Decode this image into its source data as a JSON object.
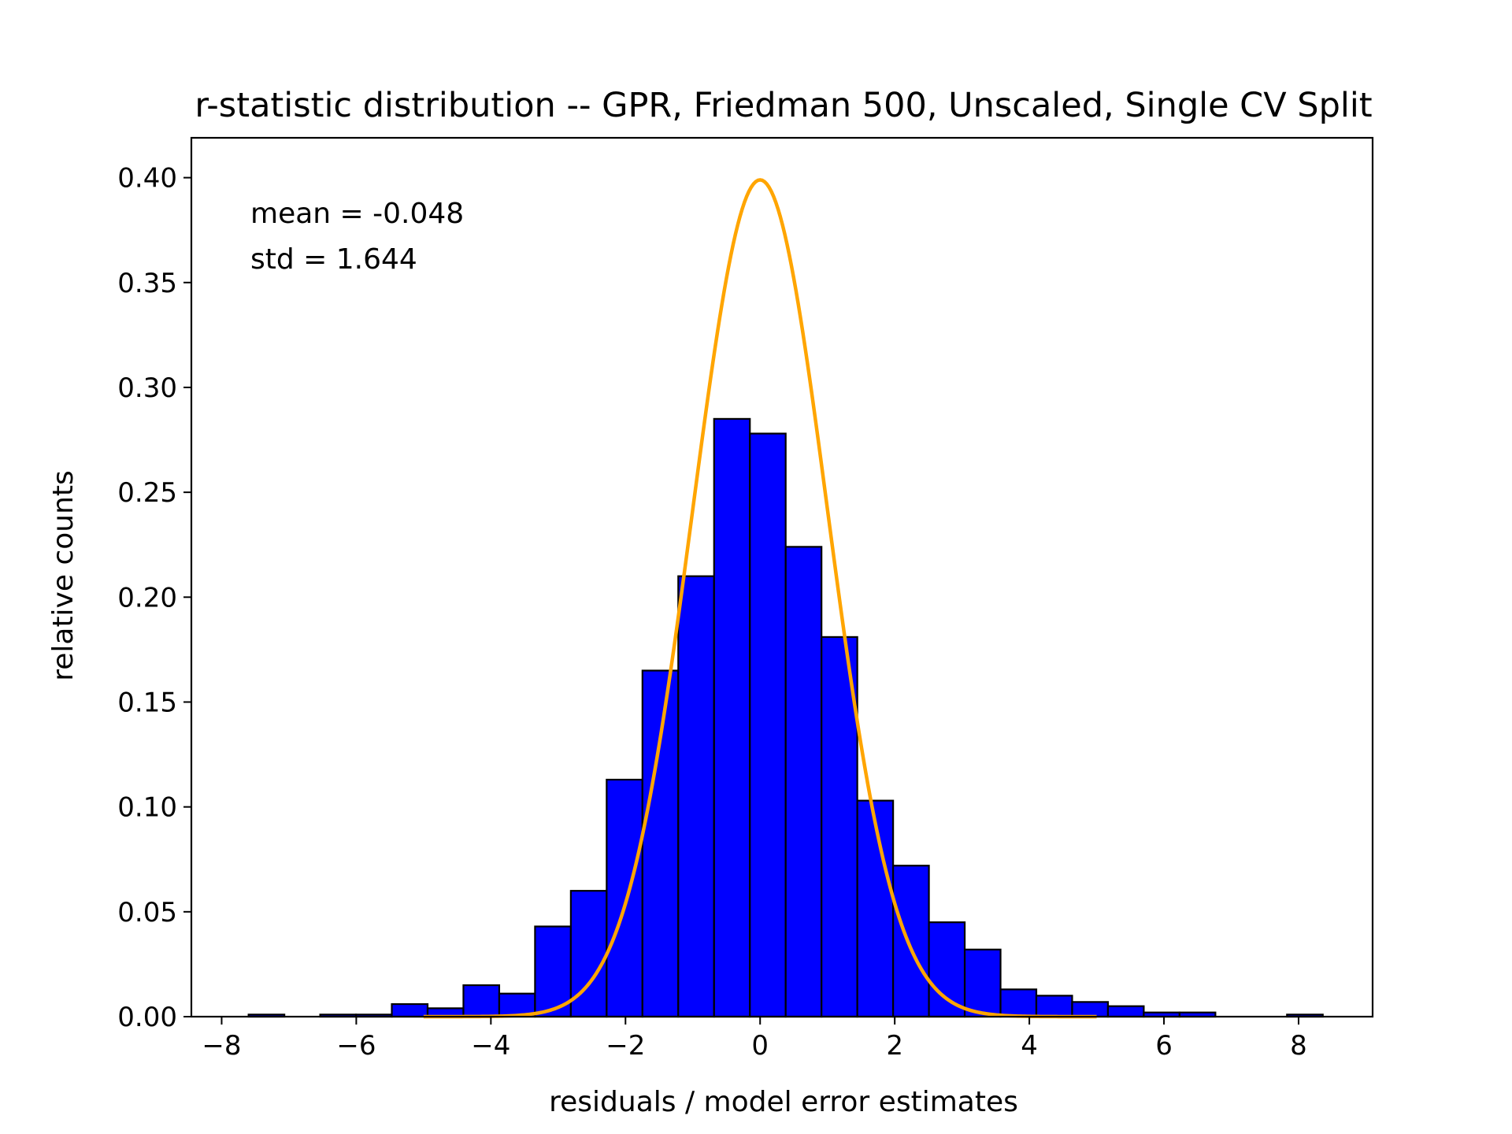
{
  "chart_data": {
    "type": "bar",
    "title": "r-statistic distribution -- GPR, Friedman 500, Unscaled, Single CV Split",
    "xlabel": "residuals / model error estimates",
    "ylabel": "relative counts",
    "xlim": [
      -8.45,
      9.1
    ],
    "ylim": [
      0,
      0.419
    ],
    "xticks": [
      -8,
      -6,
      -4,
      -2,
      0,
      2,
      4,
      6,
      8
    ],
    "xtick_labels": [
      "−8",
      "−6",
      "−4",
      "−2",
      "0",
      "2",
      "4",
      "6",
      "8"
    ],
    "yticks": [
      0.0,
      0.05,
      0.1,
      0.15,
      0.2,
      0.25,
      0.3,
      0.35,
      0.4
    ],
    "ytick_labels": [
      "0.00",
      "0.05",
      "0.10",
      "0.15",
      "0.20",
      "0.25",
      "0.30",
      "0.35",
      "0.40"
    ],
    "annotations": [
      "mean = -0.048",
      "std = 1.644"
    ],
    "histogram": {
      "bin_start": -7.6,
      "bin_width": 0.532,
      "fill_color": "#0000ff",
      "edge_color": "#000000",
      "values": [
        0.001,
        0.0,
        0.001,
        0.001,
        0.006,
        0.004,
        0.015,
        0.011,
        0.043,
        0.06,
        0.113,
        0.165,
        0.21,
        0.285,
        0.278,
        0.224,
        0.181,
        0.103,
        0.072,
        0.045,
        0.032,
        0.013,
        0.01,
        0.007,
        0.005,
        0.002,
        0.002,
        0.0,
        0.0,
        0.001
      ]
    },
    "curve": {
      "type": "normal_pdf",
      "mean": 0.0,
      "std": 1.0,
      "x_range": [
        -5.0,
        5.0
      ],
      "color": "#ffa500"
    },
    "grid": false,
    "legend": "none"
  }
}
